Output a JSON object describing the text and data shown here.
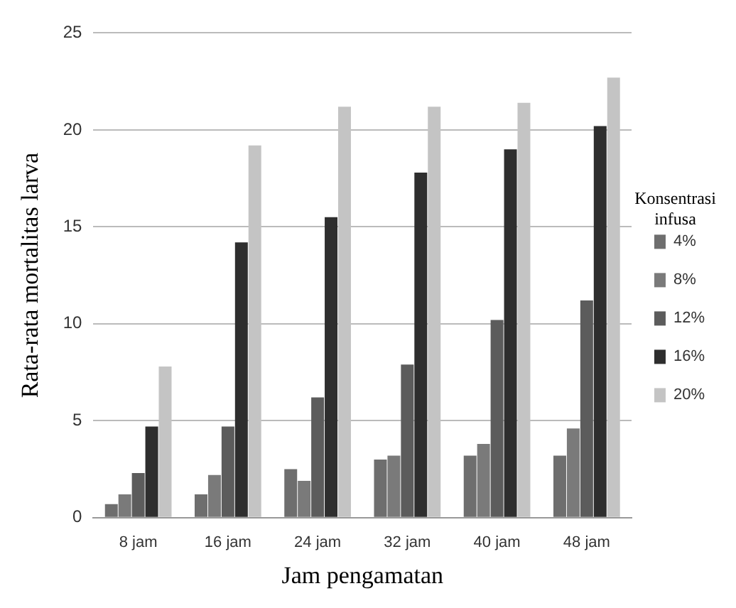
{
  "chart_data": {
    "type": "bar",
    "xlabel": "Jam pengamatan",
    "ylabel": "Rata-rata mortalitas larva",
    "legend_title": "Konsentrasi infusa",
    "categories": [
      "8 jam",
      "16 jam",
      "24 jam",
      "32 jam",
      "40 jam",
      "48 jam"
    ],
    "series": [
      {
        "name": "4%",
        "color": "#6e6e6e",
        "values": [
          0.7,
          1.2,
          2.5,
          3.0,
          3.2,
          3.2
        ]
      },
      {
        "name": "8%",
        "color": "#7a7a7a",
        "values": [
          1.2,
          2.2,
          1.9,
          3.2,
          3.8,
          4.6
        ]
      },
      {
        "name": "12%",
        "color": "#5c5c5c",
        "values": [
          2.3,
          4.7,
          6.2,
          7.9,
          10.2,
          11.2
        ]
      },
      {
        "name": "16%",
        "color": "#2e2e2e",
        "values": [
          4.7,
          14.2,
          15.5,
          17.8,
          19.0,
          20.2
        ]
      },
      {
        "name": "20%",
        "color": "#c4c4c4",
        "values": [
          7.8,
          19.2,
          21.2,
          21.2,
          21.4,
          22.7
        ]
      }
    ],
    "ylim": [
      0,
      25
    ],
    "yticks": [
      0,
      5,
      10,
      15,
      20,
      25
    ],
    "grid": "y",
    "legend": "right"
  }
}
